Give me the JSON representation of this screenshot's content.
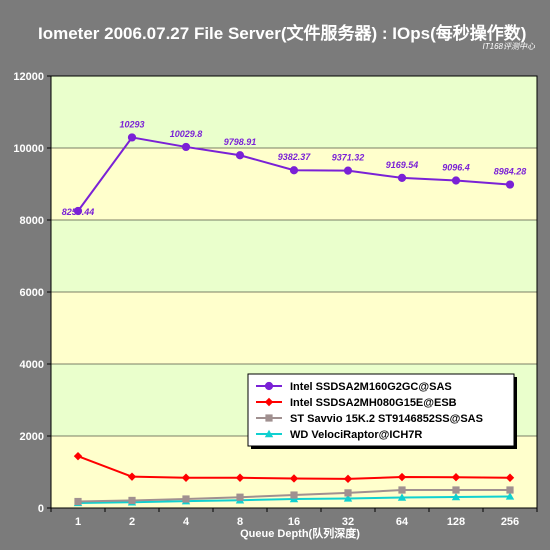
{
  "chart_data": {
    "type": "line",
    "title": "Iometer 2006.07.27 File Server(文件服务器) : IOps(每秒操作数)",
    "watermark": "IT168评测中心",
    "xlabel": "Queue Depth(队列深度)",
    "ylabel": "",
    "categories": [
      "1",
      "2",
      "4",
      "8",
      "16",
      "32",
      "64",
      "128",
      "256"
    ],
    "ylim": [
      0,
      12000
    ],
    "yticks": [
      "0",
      "2000",
      "4000",
      "6000",
      "8000",
      "10000",
      "12000"
    ],
    "ytick_values": [
      0,
      2000,
      4000,
      6000,
      8000,
      10000,
      12000
    ],
    "grid": "horizontal",
    "legend_position": "bottom-right",
    "series": [
      {
        "name": "Intel SSDSA2M160G2GC@SAS",
        "color": "#7a21d6",
        "marker": "circle",
        "values": [
          8250.44,
          10293,
          10029.8,
          9798.91,
          9382.37,
          9371.32,
          9169.54,
          9096.4,
          8984.28
        ],
        "labels": [
          "8250.44",
          "10293",
          "10029.8",
          "9798.91",
          "9382.37",
          "9371.32",
          "9169.54",
          "9096.4",
          "8984.28"
        ]
      },
      {
        "name": "Intel SSDSA2MH080G15E@ESB",
        "color": "#ff0000",
        "marker": "diamond",
        "values": [
          1440,
          870,
          840,
          840,
          820,
          810,
          860,
          855,
          840
        ]
      },
      {
        "name": "ST Savvio 15K.2 ST9146852SS@SAS",
        "color": "#a09090",
        "marker": "square",
        "values": [
          180,
          210,
          250,
          300,
          360,
          420,
          500,
          500,
          500
        ]
      },
      {
        "name": "WD VelociRaptor@ICH7R",
        "color": "#10d0d0",
        "marker": "triangle",
        "values": [
          140,
          160,
          190,
          215,
          250,
          265,
          290,
          305,
          320
        ]
      }
    ]
  }
}
